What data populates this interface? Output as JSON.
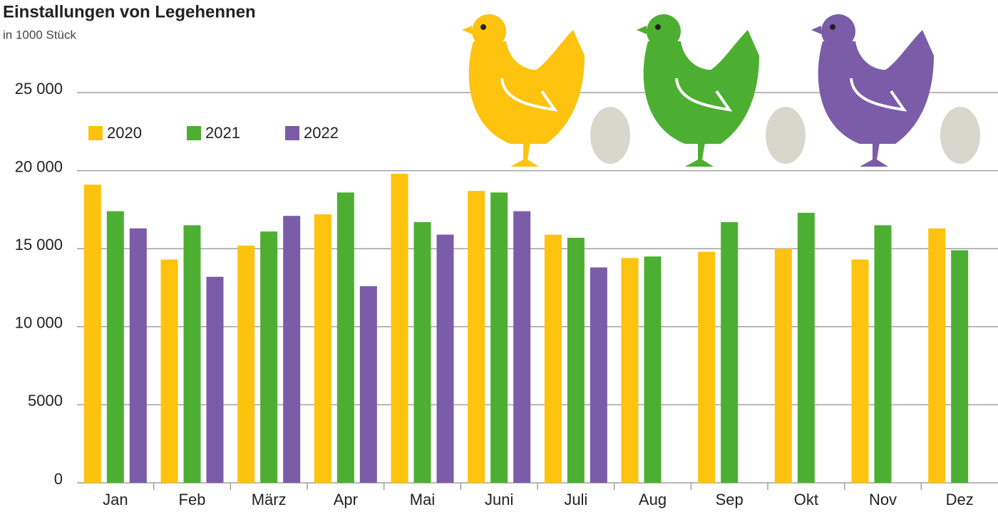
{
  "chart_data": {
    "type": "bar",
    "title": "Einstallungen von Legehennen",
    "subtitle": "in 1000 Stück",
    "categories": [
      "Jan",
      "Feb",
      "März",
      "Apr",
      "Mai",
      "Juni",
      "Juli",
      "Aug",
      "Sep",
      "Okt",
      "Nov",
      "Dez"
    ],
    "series": [
      {
        "name": "2020",
        "color": "#fdc30f",
        "values": [
          19100,
          14300,
          15200,
          17200,
          19800,
          18700,
          15900,
          14400,
          14800,
          15000,
          14300,
          16300
        ]
      },
      {
        "name": "2021",
        "color": "#4caf32",
        "values": [
          17400,
          16500,
          16100,
          18600,
          16700,
          18600,
          15700,
          14500,
          16700,
          17300,
          16500,
          14900
        ]
      },
      {
        "name": "2022",
        "color": "#7b5ca8",
        "values": [
          16300,
          13200,
          17100,
          12600,
          15900,
          17400,
          13800,
          null,
          null,
          null,
          null,
          null
        ]
      }
    ],
    "ylim": [
      0,
      25000
    ],
    "yticks": [
      0,
      5000,
      {
        "value": 10000,
        "label": "10 000"
      },
      {
        "value": 15000,
        "label": "15 000"
      },
      {
        "value": 20000,
        "label": "20 000"
      },
      {
        "value": 25000,
        "label": "25 000"
      }
    ],
    "grid": true,
    "legend": "top-left"
  }
}
